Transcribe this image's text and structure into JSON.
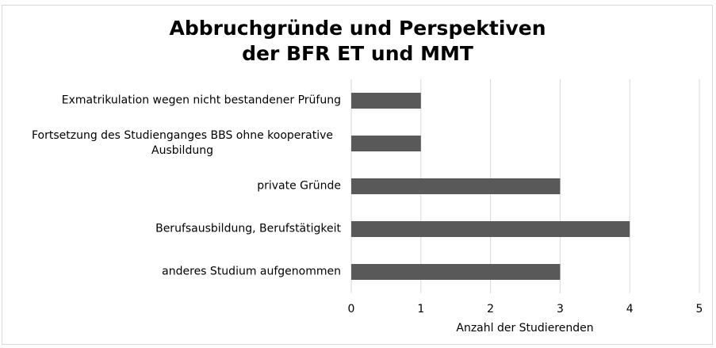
{
  "chart_data": {
    "type": "bar",
    "orientation": "horizontal",
    "title": "Abbruchgründe und Perspektiven der BFR ET und MMT",
    "categories": [
      "Exmatrikulation wegen nicht bestandener Prüfung",
      "Fortsetzung des Studienganges BBS ohne kooperative Ausbildung",
      "private Gründe",
      "Berufsausbildung, Berufstätigkeit",
      "anderes Studium aufgenommen"
    ],
    "values": [
      1,
      1,
      3,
      4,
      3
    ],
    "color": "#595959",
    "xlim": [
      0,
      5
    ],
    "xticks": [
      0,
      1,
      2,
      3,
      4,
      5
    ],
    "xlabel": "Anzahl der Studierenden",
    "grid": true
  }
}
